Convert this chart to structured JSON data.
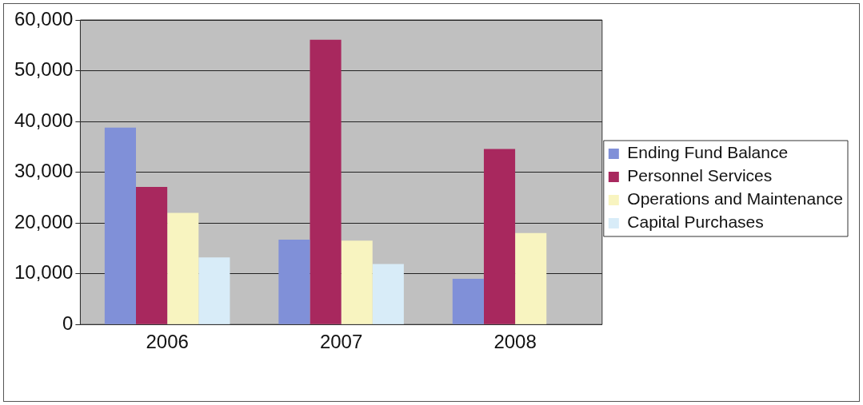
{
  "chart_data": {
    "type": "bar",
    "categories": [
      "2006",
      "2007",
      "2008"
    ],
    "series": [
      {
        "name": "Ending Fund Balance",
        "color": "#8090d8",
        "values": [
          38800,
          16700,
          9000
        ]
      },
      {
        "name": "Personnel Services",
        "color": "#a8285e",
        "values": [
          27100,
          56100,
          34600
        ]
      },
      {
        "name": "Operations and Maintenance",
        "color": "#f8f4c0",
        "values": [
          22000,
          16500,
          18000
        ]
      },
      {
        "name": "Capital Purchases",
        "color": "#d8ecf8",
        "values": [
          13200,
          11900,
          null
        ]
      }
    ],
    "ylim": [
      0,
      60000
    ],
    "yticks": [
      {
        "value": 0,
        "label": "0"
      },
      {
        "value": 10000,
        "label": "10,000"
      },
      {
        "value": 20000,
        "label": "20,000"
      },
      {
        "value": 30000,
        "label": "30,000"
      },
      {
        "value": 40000,
        "label": "40,000"
      },
      {
        "value": 50000,
        "label": "50,000"
      },
      {
        "value": 60000,
        "label": "60,000"
      }
    ],
    "grid": "y",
    "legend": "right"
  }
}
